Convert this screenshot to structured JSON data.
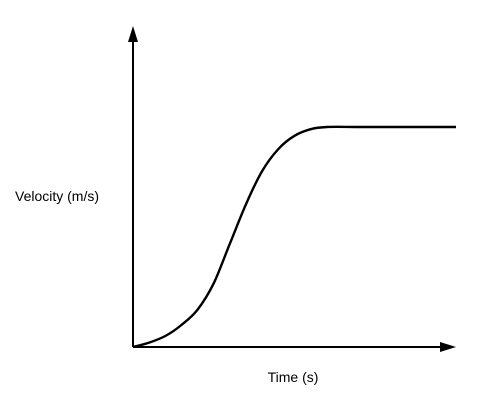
{
  "chart_data": {
    "type": "line",
    "title": "",
    "xlabel": "Time (s)",
    "ylabel": "Velocity (m/s)",
    "grid": false,
    "legend": "none",
    "ticks": "none",
    "series": [
      {
        "shape": "sigmoid",
        "points": [
          {
            "x": 0.0,
            "y": 0.0
          },
          {
            "x": 0.05,
            "y": 0.02
          },
          {
            "x": 0.1,
            "y": 0.05
          },
          {
            "x": 0.15,
            "y": 0.1
          },
          {
            "x": 0.2,
            "y": 0.17
          },
          {
            "x": 0.25,
            "y": 0.29
          },
          {
            "x": 0.3,
            "y": 0.47
          },
          {
            "x": 0.35,
            "y": 0.65
          },
          {
            "x": 0.4,
            "y": 0.8
          },
          {
            "x": 0.45,
            "y": 0.9
          },
          {
            "x": 0.5,
            "y": 0.96
          },
          {
            "x": 0.55,
            "y": 0.99
          },
          {
            "x": 0.6,
            "y": 1.0
          },
          {
            "x": 0.7,
            "y": 1.0
          },
          {
            "x": 0.8,
            "y": 1.0
          },
          {
            "x": 0.9,
            "y": 1.0
          },
          {
            "x": 1.0,
            "y": 1.0
          }
        ]
      }
    ],
    "style": {
      "axis_color": "#000000",
      "line_color": "#000000"
    }
  }
}
